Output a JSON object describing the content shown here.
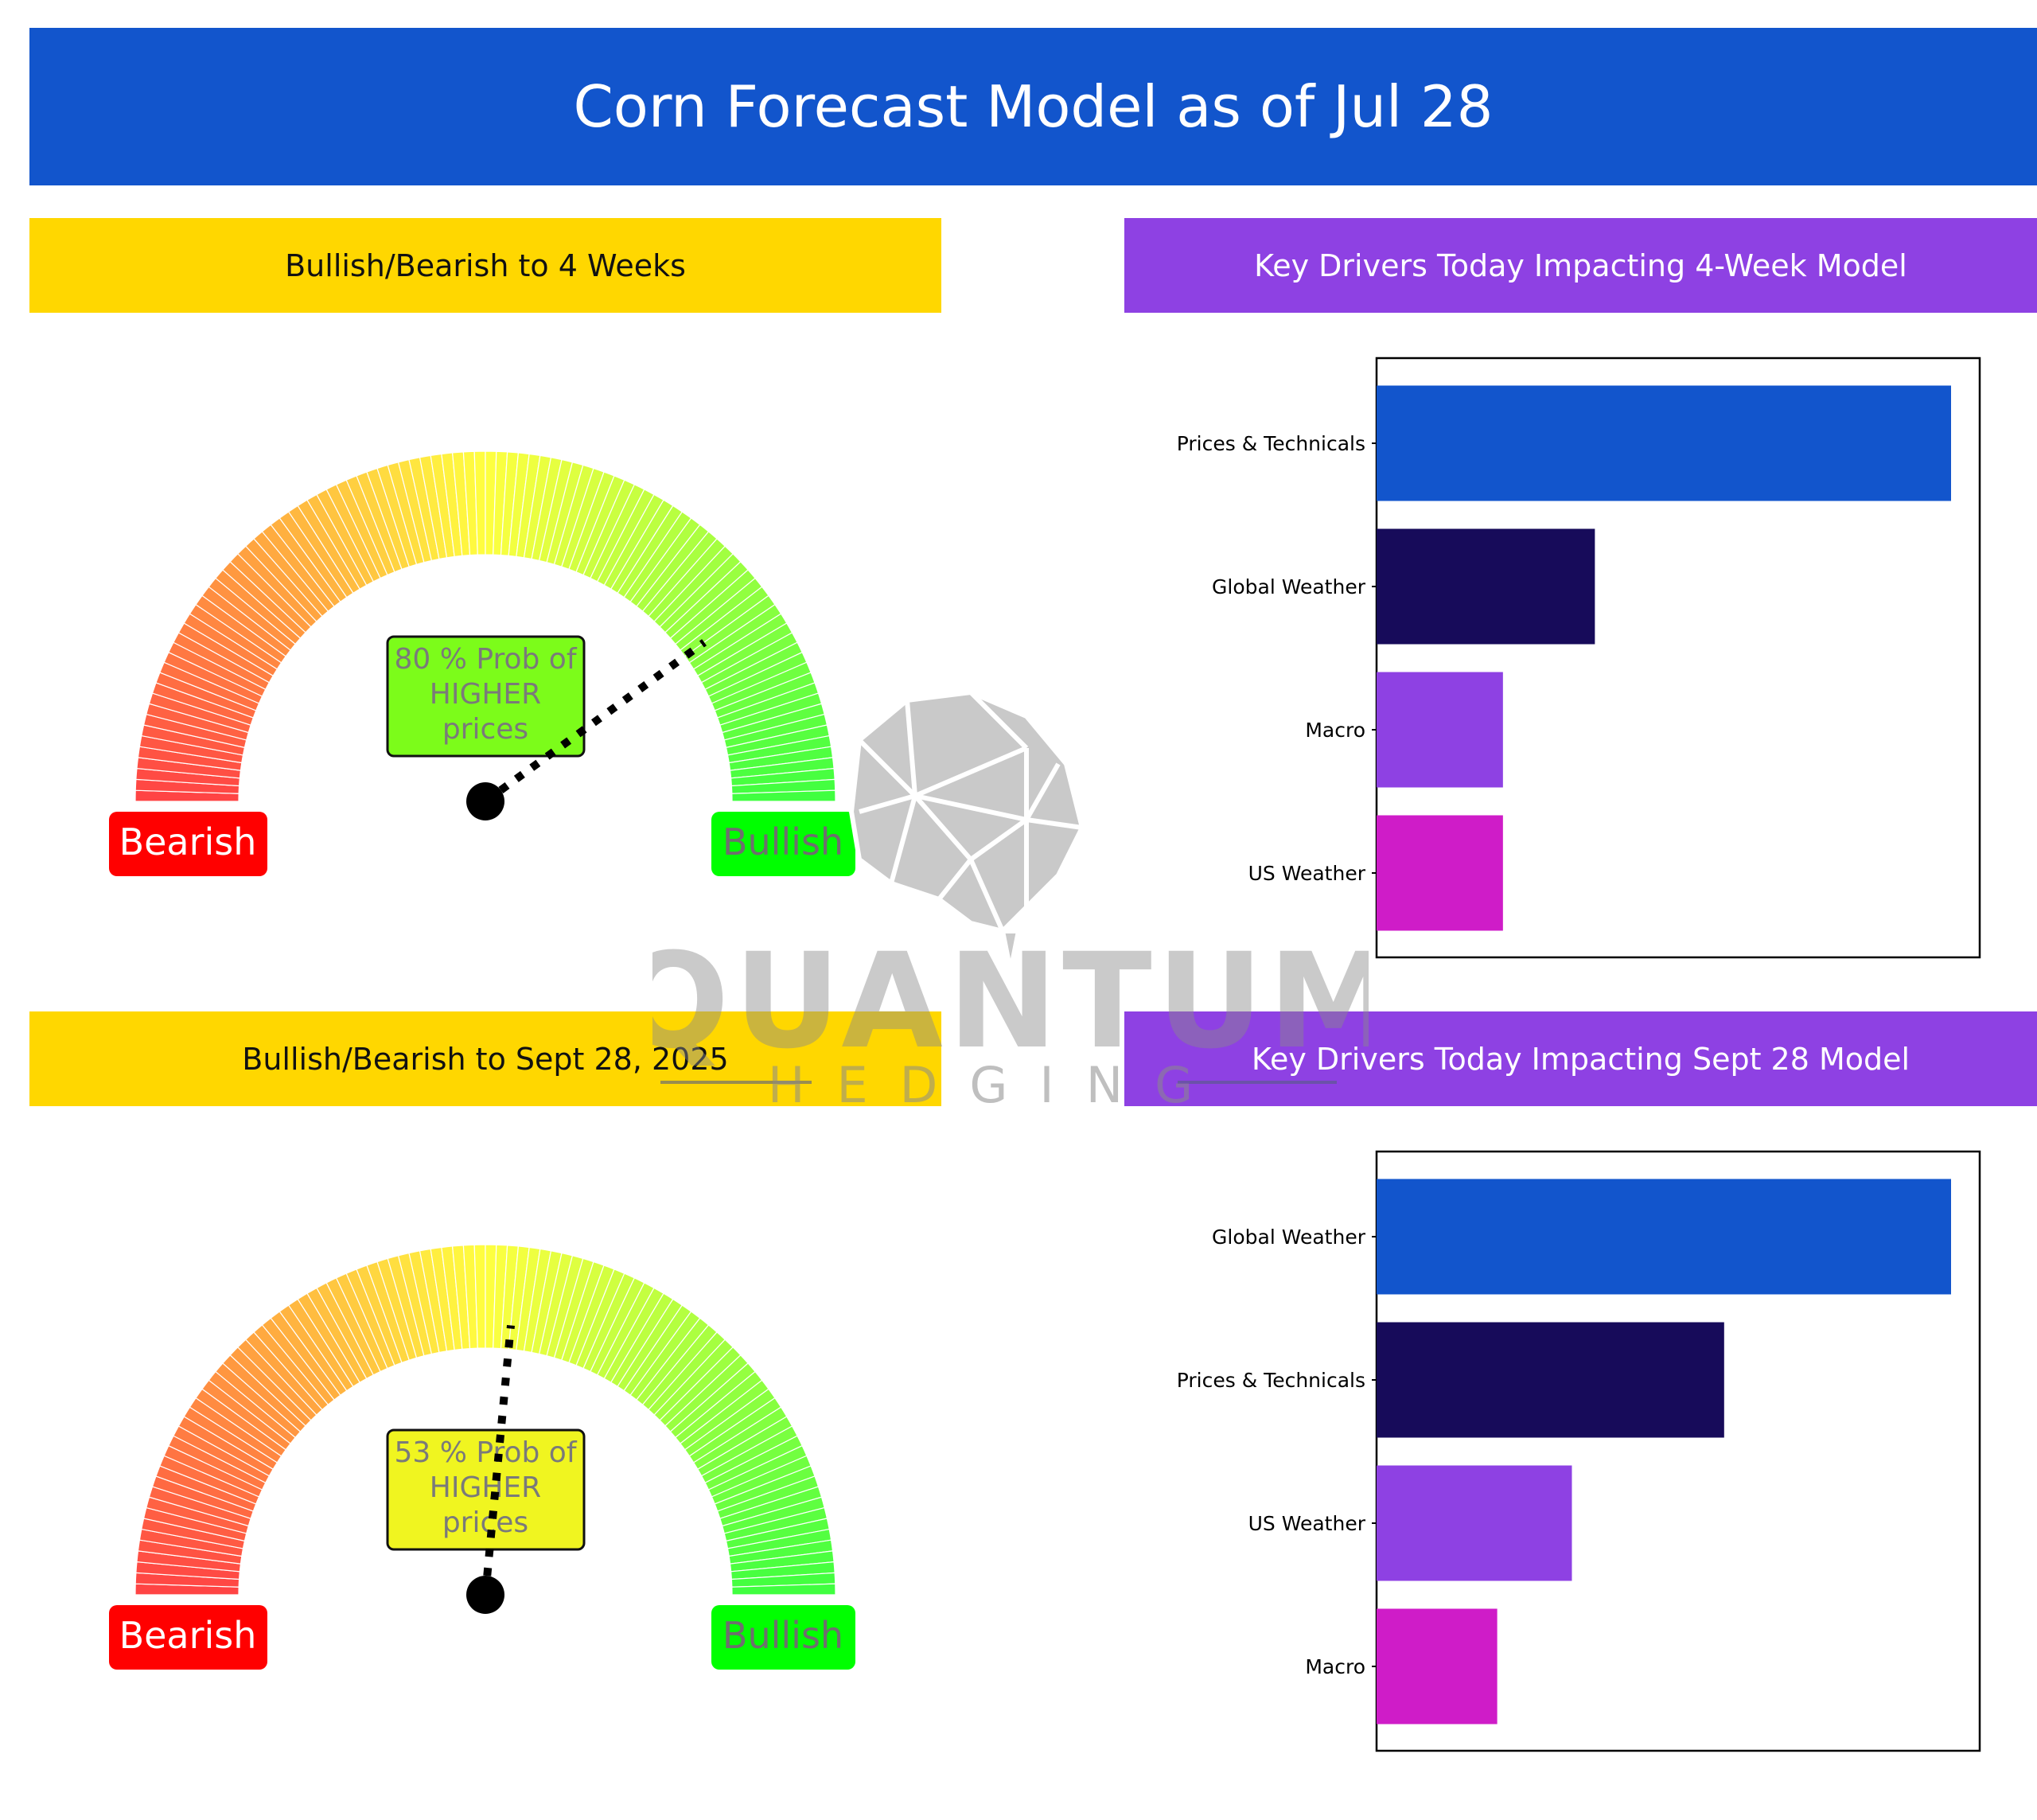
{
  "title": "Corn Forecast Model as of Jul 28",
  "panels": {
    "gauge1": {
      "heading": "Bullish/Bearish to 4 Weeks",
      "probability": 80,
      "label_lines": [
        "80 % Prob of",
        "HIGHER",
        "prices"
      ],
      "box_color": "#7CFC1A",
      "bearish_label": "Bearish",
      "bullish_label": "Bullish"
    },
    "gauge2": {
      "heading": "Bullish/Bearish to Sept 28, 2025",
      "probability": 53,
      "label_lines": [
        "53 % Prob of",
        "HIGHER",
        "prices"
      ],
      "box_color": "#F0F520",
      "bearish_label": "Bearish",
      "bullish_label": "Bullish"
    },
    "drivers1": {
      "heading": "Key Drivers Today Impacting 4-Week Model"
    },
    "drivers2": {
      "heading": "Key Drivers Today Impacting Sept 28 Model"
    }
  },
  "colors": {
    "banner": "#1255CC",
    "yellow_header": "#FFD700",
    "purple_header": "#8E41E3",
    "bearish": "#FF0000",
    "bullish": "#00FF00",
    "bar1": "#1255CC",
    "bar2": "#170B5A",
    "bar3": "#8E41E3",
    "bar4": "#CF1CC8"
  },
  "watermark": {
    "brand": "QUANTUM",
    "sub": "HEDGING"
  },
  "chart_data": [
    {
      "type": "gauge",
      "title": "Bullish/Bearish to 4 Weeks",
      "value": 80,
      "range": [
        0,
        100
      ],
      "labels": [
        "Bearish",
        "Bullish"
      ],
      "annotation": "80 % Prob of HIGHER prices"
    },
    {
      "type": "bar",
      "orientation": "horizontal",
      "title": "Key Drivers Today Impacting 4-Week Model",
      "categories": [
        "Prices & Technicals",
        "Global Weather",
        "Macro",
        "US Weather"
      ],
      "values": [
        1.0,
        0.38,
        0.22,
        0.22
      ],
      "xlabel": "",
      "ylabel": ""
    },
    {
      "type": "gauge",
      "title": "Bullish/Bearish to Sept 28, 2025",
      "value": 53,
      "range": [
        0,
        100
      ],
      "labels": [
        "Bearish",
        "Bullish"
      ],
      "annotation": "53 % Prob of HIGHER prices"
    },
    {
      "type": "bar",
      "orientation": "horizontal",
      "title": "Key Drivers Today Impacting Sept 28 Model",
      "categories": [
        "Global Weather",
        "Prices & Technicals",
        "US Weather",
        "Macro"
      ],
      "values": [
        1.0,
        0.605,
        0.34,
        0.21
      ],
      "xlabel": "",
      "ylabel": ""
    }
  ]
}
